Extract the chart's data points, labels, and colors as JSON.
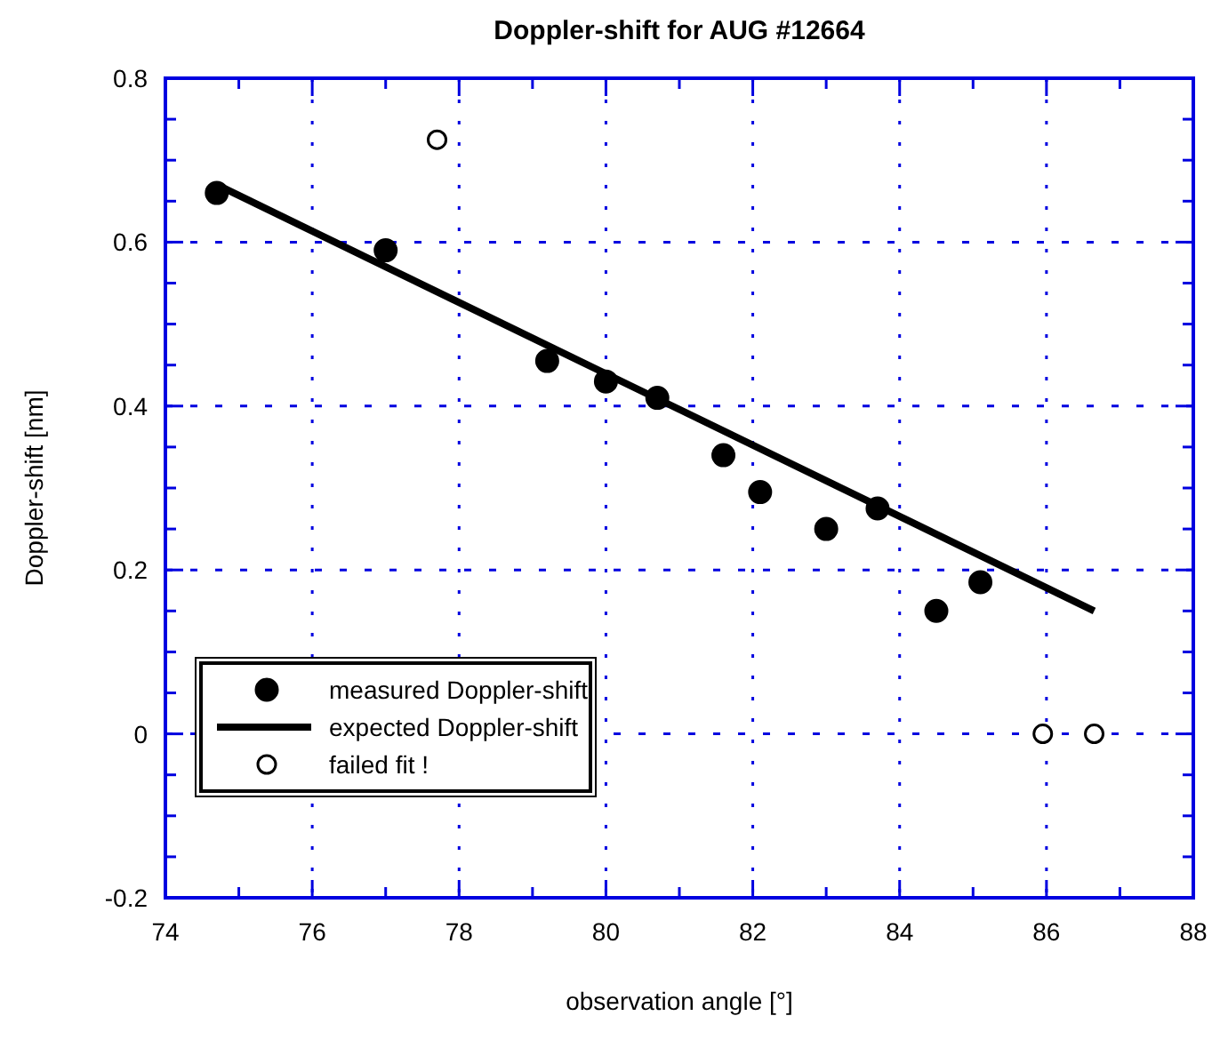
{
  "chart_data": {
    "type": "scatter",
    "title": "Doppler-shift for AUG #12664",
    "xlabel": "observation angle [°]",
    "ylabel": "Doppler-shift [nm]",
    "xlim": [
      74,
      88
    ],
    "ylim": [
      -0.2,
      0.8
    ],
    "xticks": [
      74,
      {
        "value": 75,
        "label": null
      },
      76,
      {
        "value": 77,
        "label": null
      },
      78,
      {
        "value": 79,
        "label": null
      },
      80,
      {
        "value": 81,
        "label": null
      },
      82,
      {
        "value": 83,
        "label": null
      },
      84,
      {
        "value": 85,
        "label": null
      },
      86,
      {
        "value": 87,
        "label": null
      },
      88
    ],
    "yticks": [
      -0.2,
      {
        "value": -0.15,
        "label": null
      },
      {
        "value": -0.1,
        "label": null
      },
      {
        "value": -0.05,
        "label": null
      },
      0,
      {
        "value": 0.05,
        "label": null
      },
      {
        "value": 0.1,
        "label": null
      },
      {
        "value": 0.15,
        "label": null
      },
      0.2,
      {
        "value": 0.25,
        "label": null
      },
      {
        "value": 0.3,
        "label": null
      },
      {
        "value": 0.35,
        "label": null
      },
      0.4,
      {
        "value": 0.45,
        "label": null
      },
      {
        "value": 0.5,
        "label": null
      },
      {
        "value": 0.55,
        "label": null
      },
      0.6,
      {
        "value": 0.65,
        "label": null
      },
      {
        "value": 0.7,
        "label": null
      },
      {
        "value": 0.75,
        "label": null
      },
      0.8
    ],
    "grid": true,
    "legend": "bottom left",
    "series": [
      {
        "name": "measured Doppler-shift",
        "marker": "circle",
        "color": "#000000",
        "x": [
          74.7,
          77,
          79.2,
          80,
          80.7,
          81.6,
          82.1,
          83,
          83.7,
          84.5,
          85.1
        ],
        "values": [
          0.66,
          0.59,
          0.455,
          0.43,
          0.41,
          0.34,
          0.295,
          0.25,
          0.275,
          0.15,
          0.185
        ]
      },
      {
        "name": "expected Doppler-shift",
        "type": "line",
        "line_style": "solid",
        "color": "#000000",
        "x": [
          74.7,
          86.65
        ],
        "values": [
          0.67,
          0.15
        ]
      },
      {
        "name": "failed fit !",
        "marker": "circle",
        "color": "#ffffff",
        "x": [
          77.7,
          85.95,
          86.65
        ],
        "values": [
          0.725,
          0,
          0
        ]
      }
    ]
  }
}
